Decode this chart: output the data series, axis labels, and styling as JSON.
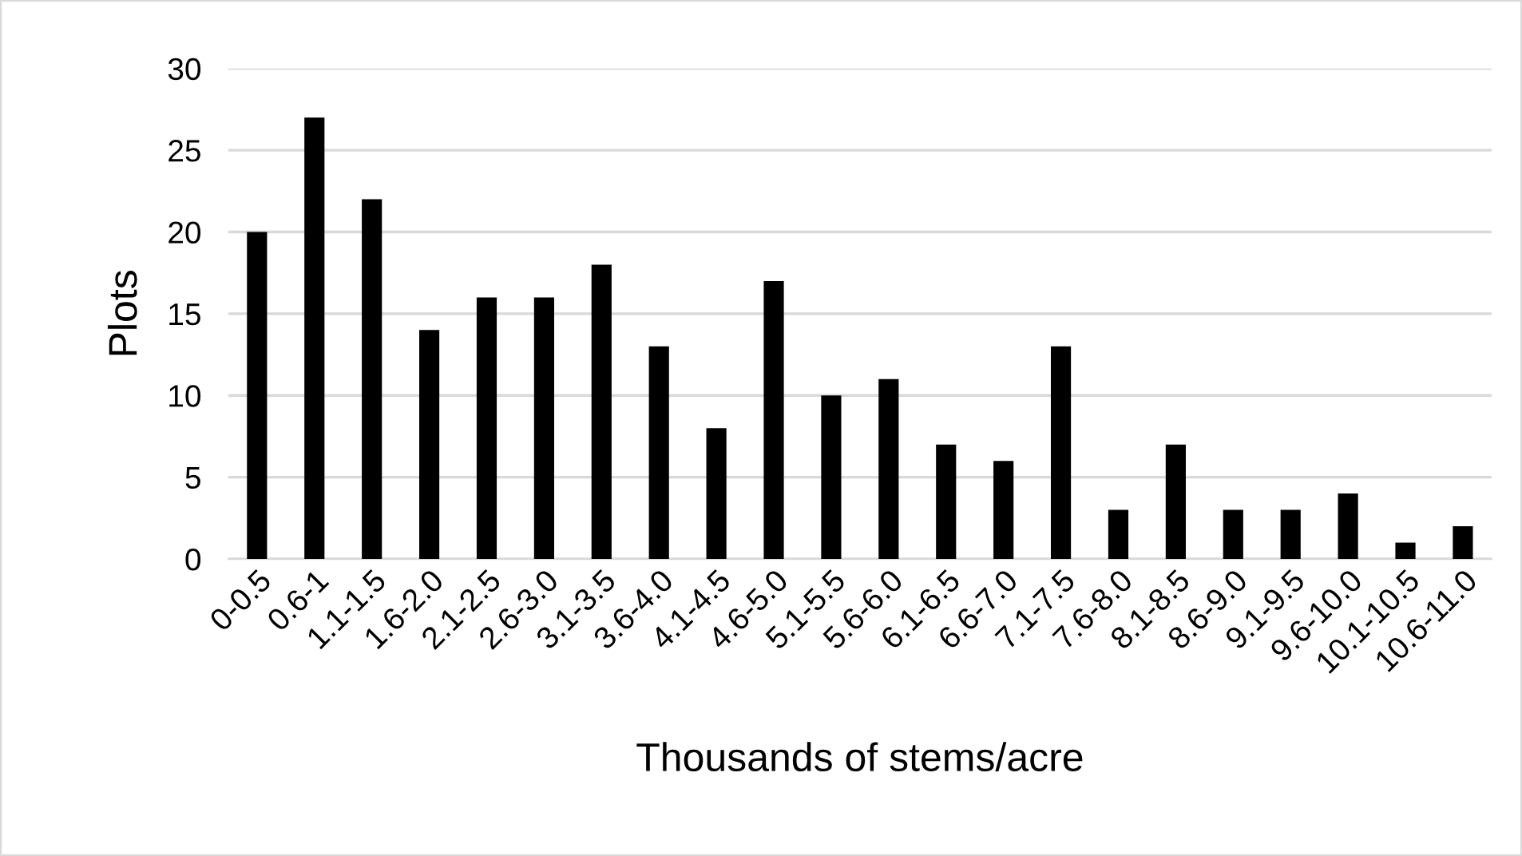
{
  "chart_data": {
    "type": "bar",
    "xlabel": "Thousands of stems/acre",
    "ylabel": "Plots",
    "categories": [
      "0-0.5",
      "0.6-1",
      "1.1-1.5",
      "1.6-2.0",
      "2.1-2.5",
      "2.6-3.0",
      "3.1-3.5",
      "3.6-4.0",
      "4.1-4.5",
      "4.6-5.0",
      "5.1-5.5",
      "5.6-6.0",
      "6.1-6.5",
      "6.6-7.0",
      "7.1-7.5",
      "7.6-8.0",
      "8.1-8.5",
      "8.6-9.0",
      "9.1-9.5",
      "9.6-10.0",
      "10.1-10.5",
      "10.6-11.0"
    ],
    "values": [
      20,
      27,
      22,
      14,
      16,
      16,
      18,
      13,
      8,
      17,
      10,
      11,
      7,
      6,
      13,
      3,
      7,
      3,
      3,
      4,
      1,
      2
    ],
    "color": "#000000",
    "ylim": [
      0,
      30
    ],
    "yticks": [
      0,
      5,
      10,
      15,
      20,
      25,
      30
    ],
    "grid": "y",
    "legend": false
  }
}
